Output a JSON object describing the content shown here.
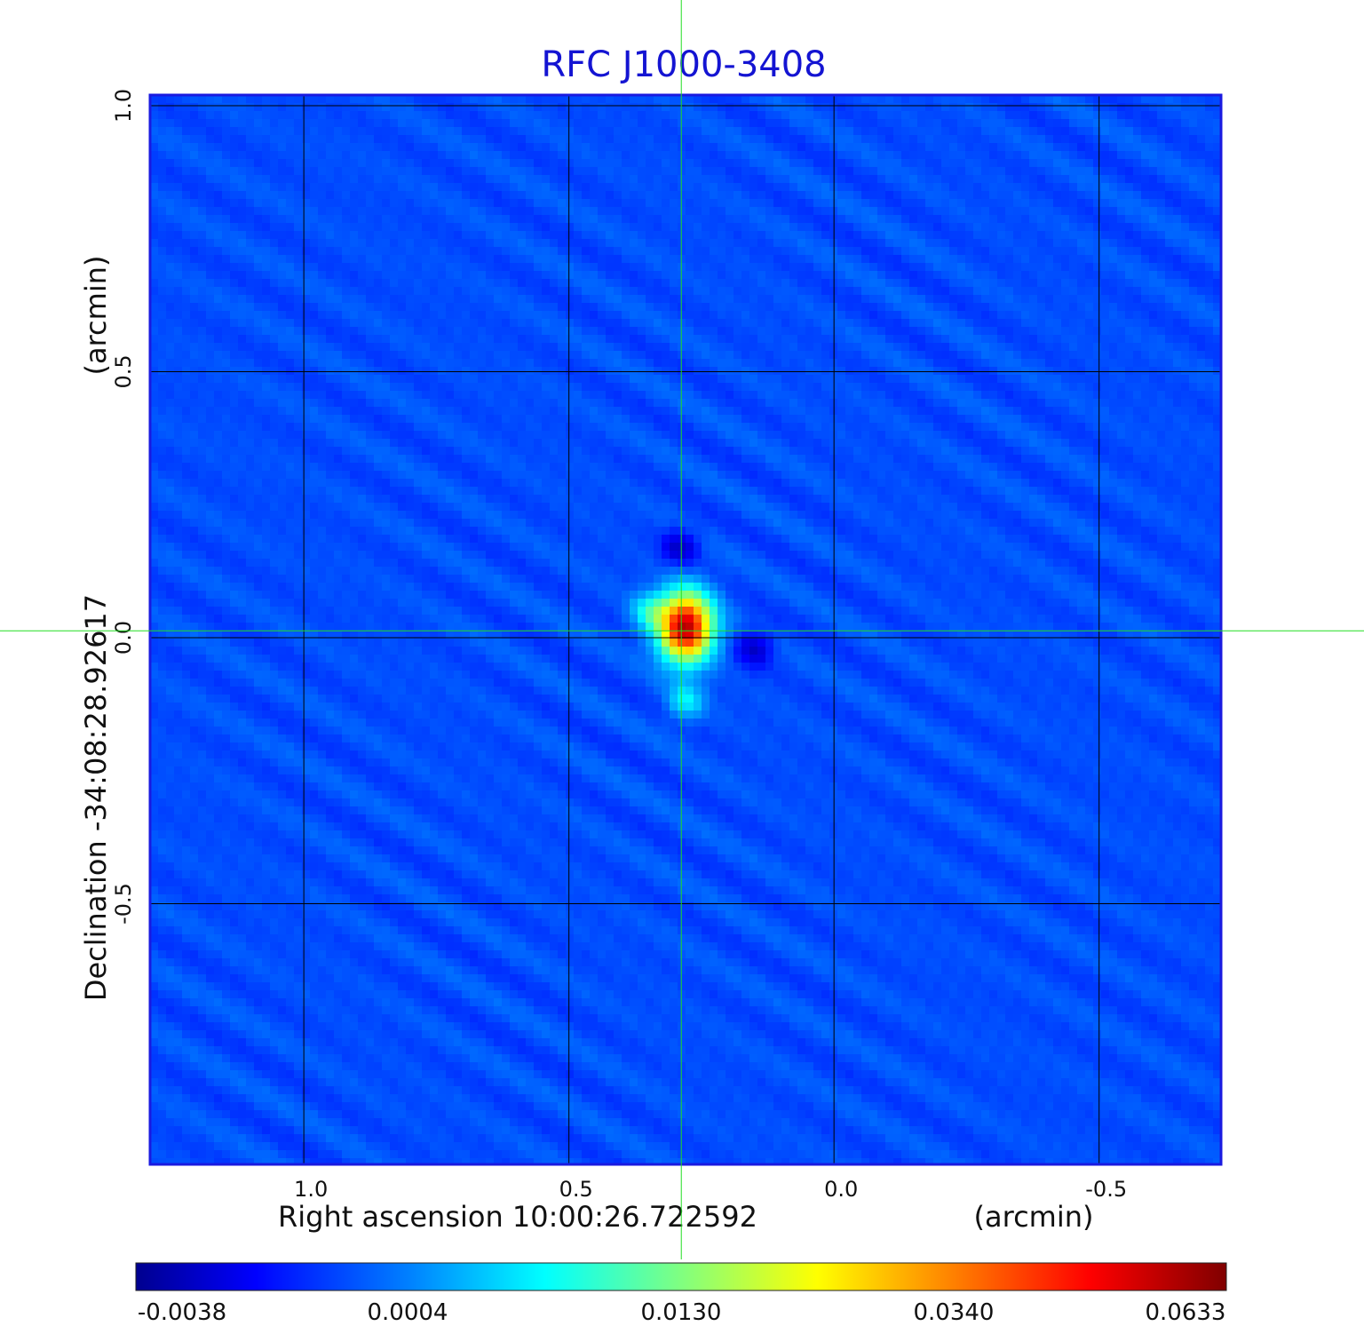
{
  "chart_data": {
    "type": "heatmap",
    "title": "RFC J1000-3408",
    "xlabel": "Right ascension  10:00:26.722592",
    "xunit": "(arcmin)",
    "ylabel": "Declination  -34:08:28.92617",
    "yunit": "(arcmin)",
    "xlim": [
      1.29,
      -0.73
    ],
    "ylim": [
      -0.99,
      1.02
    ],
    "x_ticks": [
      1.0,
      0.5,
      0.0,
      -0.5
    ],
    "x_tick_labels": [
      "1.0",
      "0.5",
      "0.0",
      "-0.5"
    ],
    "y_ticks": [
      -0.5,
      0.0,
      0.5,
      1.0
    ],
    "y_tick_labels": [
      "-0.5",
      "0.0",
      "0.5",
      "1.0"
    ],
    "grid": true,
    "crosshair": {
      "x": 0.288,
      "y": 0.013,
      "color": "#22dd22"
    },
    "colormap": "jet",
    "colorbar": {
      "position": "bottom",
      "tick_labels": [
        "-0.0038",
        "0.0004",
        "0.0130",
        "0.0340",
        "0.0633"
      ],
      "values": [
        -0.0038,
        0.0004,
        0.013,
        0.034,
        0.0633
      ]
    },
    "peak": {
      "x": 0.28,
      "y": 0.02,
      "value": 0.0633
    },
    "features": [
      {
        "kind": "sidelobe_negative",
        "x": 0.29,
        "y": 0.17,
        "value": -0.0035
      },
      {
        "kind": "sidelobe_negative",
        "x": 0.15,
        "y": -0.02,
        "value": -0.0033
      },
      {
        "kind": "sidelobe_positive",
        "x": 0.28,
        "y": -0.12,
        "value": 0.009
      },
      {
        "kind": "sidelobe_positive",
        "x": 0.35,
        "y": 0.05,
        "value": 0.008
      }
    ]
  }
}
